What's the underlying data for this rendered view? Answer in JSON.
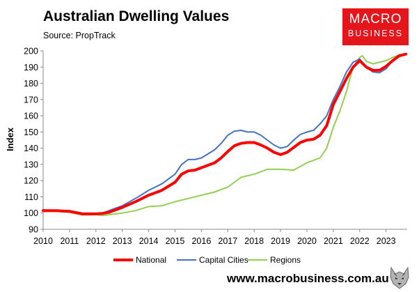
{
  "header": {
    "title": "Australian Dwelling Values",
    "source": "Source: PropTrack"
  },
  "logo": {
    "line1": "MACRO",
    "line2": "BUSINESS",
    "color": "#e4161c"
  },
  "footer": {
    "url": "www.macrobusiness.com.au",
    "mascot_icon": "wolf-head-icon"
  },
  "chart_data": {
    "type": "line",
    "title": "Australian Dwelling Values",
    "xlabel": "",
    "ylabel": "Index",
    "xlim": [
      2010,
      2023.8
    ],
    "ylim": [
      90,
      200
    ],
    "grid": false,
    "legend_position": "bottom",
    "x_ticks": [
      2010,
      2011,
      2012,
      2013,
      2014,
      2015,
      2016,
      2017,
      2018,
      2019,
      2020,
      2021,
      2022,
      2023
    ],
    "x_tick_labels": [
      "2010",
      "2011",
      "2012",
      "2013",
      "2014",
      "2015",
      "2016",
      "2017",
      "2018",
      "2019",
      "2020",
      "2021",
      "2022",
      "2023"
    ],
    "y_ticks": [
      90,
      100,
      110,
      120,
      130,
      140,
      150,
      160,
      170,
      180,
      190,
      200
    ],
    "y_tick_labels": [
      "90",
      "100",
      "110",
      "120",
      "130",
      "140",
      "150",
      "160",
      "170",
      "180",
      "190",
      "200"
    ],
    "series": [
      {
        "name": "Regions",
        "color": "#92d050",
        "width": 2,
        "x": [
          2010,
          2010.5,
          2011,
          2011.5,
          2011.75,
          2012,
          2012.25,
          2012.5,
          2012.75,
          2013,
          2013.5,
          2014,
          2014.5,
          2015,
          2015.5,
          2016,
          2016.5,
          2017,
          2017.5,
          2018,
          2018.5,
          2019,
          2019.5,
          2020,
          2020.5,
          2020.75,
          2021,
          2021.25,
          2021.5,
          2021.75,
          2022,
          2022.1,
          2022.25,
          2022.5,
          2022.75,
          2023,
          2023.25,
          2023.5,
          2023.75
        ],
        "values": [
          101,
          101,
          100.5,
          98.8,
          98.8,
          99,
          98.5,
          99,
          99.5,
          100,
          101.5,
          104,
          104.5,
          107,
          109,
          111,
          113,
          116,
          122,
          124,
          127,
          127,
          126.5,
          131,
          134,
          140,
          153,
          163,
          175,
          190,
          196,
          197,
          193.5,
          192,
          193,
          194,
          196,
          197.5,
          198
        ]
      },
      {
        "name": "Capital Cities",
        "color": "#4472c4",
        "width": 2,
        "x": [
          2010,
          2010.5,
          2011,
          2011.5,
          2011.75,
          2012,
          2012.25,
          2012.5,
          2012.75,
          2013,
          2013.5,
          2014,
          2014.5,
          2015,
          2015.25,
          2015.5,
          2015.75,
          2016,
          2016.5,
          2016.75,
          2017,
          2017.25,
          2017.5,
          2017.75,
          2018,
          2018.25,
          2018.5,
          2018.75,
          2019,
          2019.25,
          2019.5,
          2019.75,
          2020,
          2020.25,
          2020.5,
          2020.75,
          2021,
          2021.25,
          2021.5,
          2021.75,
          2022,
          2022.25,
          2022.5,
          2022.75,
          2023,
          2023.25,
          2023.5,
          2023.75
        ],
        "values": [
          102,
          101.5,
          101.5,
          99.5,
          99.3,
          99.5,
          100,
          101.5,
          103,
          104.5,
          109,
          114,
          118,
          124,
          130,
          133,
          133,
          134,
          139,
          143,
          148,
          150.5,
          151,
          150,
          150,
          148,
          145,
          142,
          140,
          141,
          145,
          148.5,
          150,
          151,
          155,
          160,
          170,
          178,
          187,
          193,
          195,
          190,
          187,
          186.5,
          189,
          194,
          197,
          198
        ]
      },
      {
        "name": "National",
        "color": "#ff0000",
        "width": 4,
        "x": [
          2010,
          2010.5,
          2011,
          2011.5,
          2011.75,
          2012,
          2012.25,
          2012.5,
          2012.75,
          2013,
          2013.5,
          2014,
          2014.5,
          2015,
          2015.25,
          2015.5,
          2015.75,
          2016,
          2016.5,
          2016.75,
          2017,
          2017.25,
          2017.5,
          2017.75,
          2018,
          2018.25,
          2018.5,
          2018.75,
          2019,
          2019.25,
          2019.5,
          2019.75,
          2020,
          2020.25,
          2020.5,
          2020.75,
          2021,
          2021.25,
          2021.5,
          2021.75,
          2022,
          2022.25,
          2022.5,
          2022.75,
          2023,
          2023.25,
          2023.5,
          2023.75
        ],
        "values": [
          101.5,
          101.5,
          101,
          99.5,
          99.5,
          99.5,
          99.8,
          100.5,
          102,
          103.5,
          107,
          111,
          114,
          119,
          124,
          126,
          126.5,
          128,
          131,
          134,
          138,
          141.5,
          143,
          143.5,
          143.5,
          142,
          140,
          137.5,
          136,
          137.5,
          140.5,
          143.5,
          145,
          145.5,
          148,
          154,
          167,
          175,
          183,
          190,
          194,
          190,
          188,
          188,
          190.5,
          194,
          197,
          198
        ]
      }
    ],
    "legend_order": [
      "National",
      "Capital Cities",
      "Regions"
    ]
  }
}
